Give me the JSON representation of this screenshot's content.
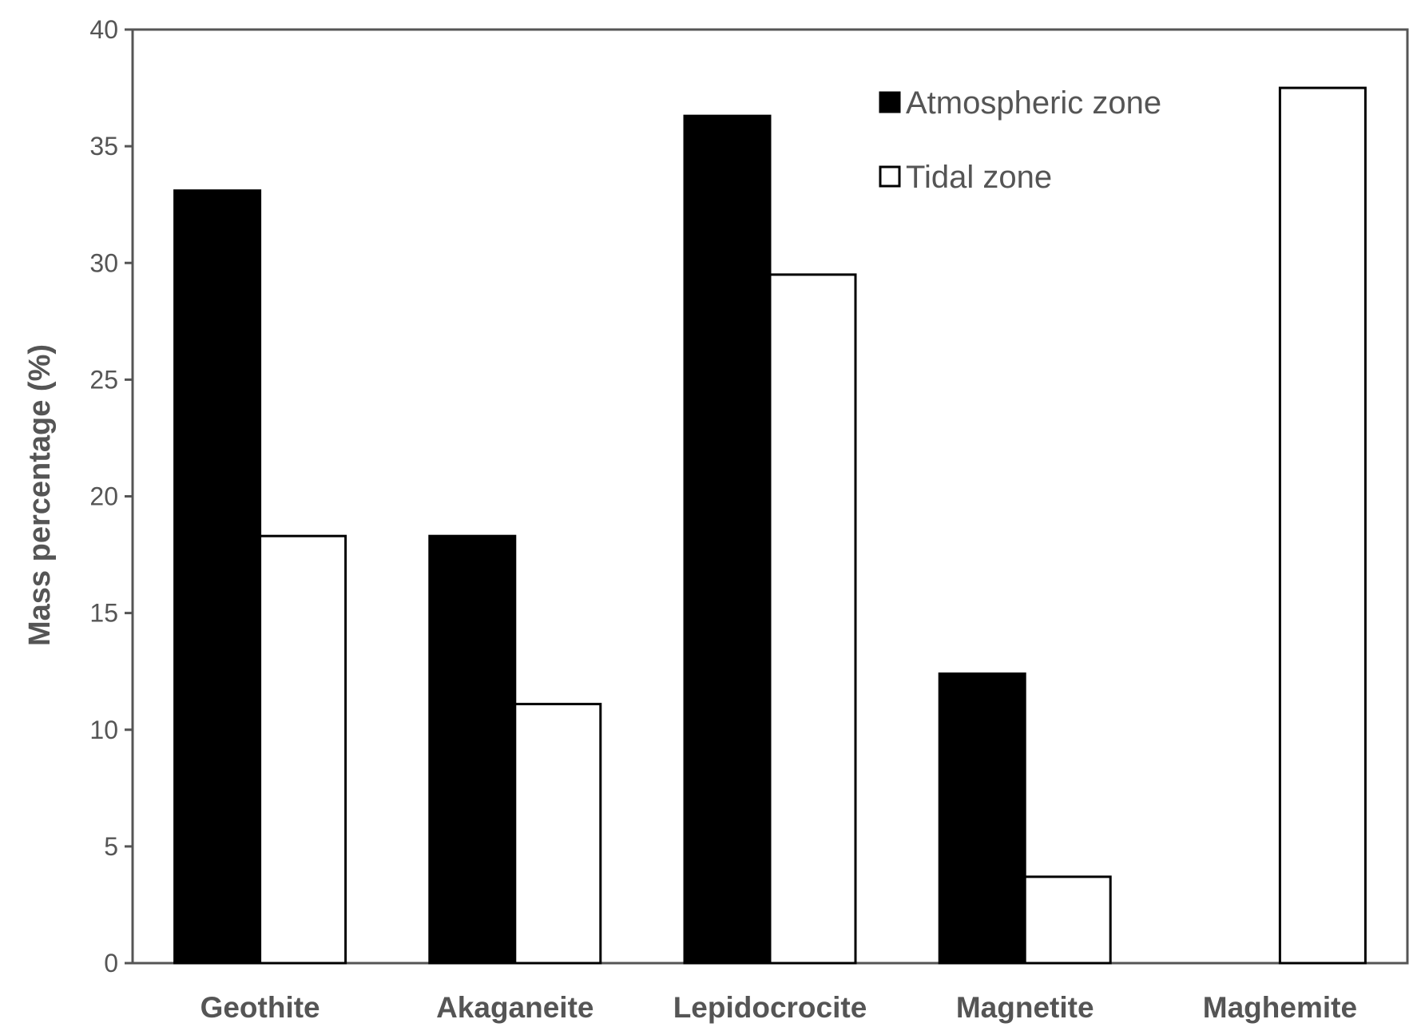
{
  "chart_data": {
    "type": "bar",
    "title": "",
    "xlabel": "",
    "ylabel": "Mass percentage (%)",
    "ylim": [
      0,
      40
    ],
    "yticks": [
      0,
      5,
      10,
      15,
      20,
      25,
      30,
      35,
      40
    ],
    "grid": false,
    "legend_position": "top-right",
    "categories": [
      "Geothite",
      "Akaganeite",
      "Lepidocrocite",
      "Magnetite",
      "Maghemite"
    ],
    "series": [
      {
        "name": "Atmospheric zone",
        "fill": "#000000",
        "values": [
          33.1,
          18.3,
          36.3,
          12.4,
          0
        ]
      },
      {
        "name": "Tidal zone",
        "fill": "#ffffff",
        "values": [
          18.3,
          11.1,
          29.5,
          3.7,
          37.5
        ]
      }
    ]
  }
}
